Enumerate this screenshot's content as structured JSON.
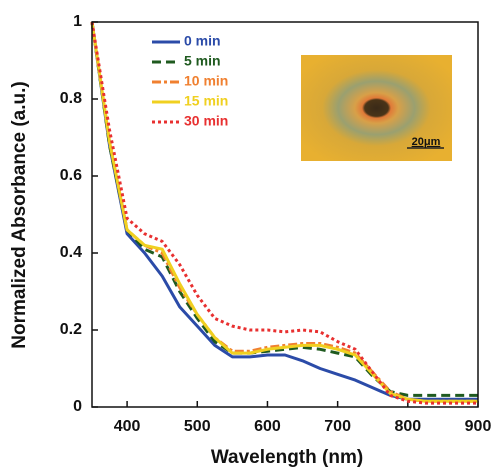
{
  "chart_data": {
    "type": "line",
    "xlabel": "Wavelength (nm)",
    "ylabel": "Normalized Absorbance (a.u.)",
    "x": [
      350,
      375,
      400,
      425,
      450,
      475,
      500,
      525,
      550,
      575,
      600,
      625,
      650,
      675,
      700,
      725,
      750,
      775,
      800,
      825,
      850,
      875,
      900
    ],
    "series": [
      {
        "name": "0 min",
        "color": "#2b4ba8",
        "dash": "solid",
        "values": [
          1.0,
          0.68,
          0.45,
          0.4,
          0.34,
          0.26,
          0.21,
          0.16,
          0.13,
          0.13,
          0.135,
          0.135,
          0.12,
          0.1,
          0.085,
          0.07,
          0.05,
          0.03,
          0.02,
          0.02,
          0.02,
          0.02,
          0.02
        ]
      },
      {
        "name": "5 min",
        "color": "#1f5a1f",
        "dash": "dashed",
        "values": [
          1.0,
          0.68,
          0.46,
          0.41,
          0.39,
          0.3,
          0.23,
          0.17,
          0.14,
          0.14,
          0.145,
          0.15,
          0.155,
          0.15,
          0.14,
          0.13,
          0.08,
          0.04,
          0.03,
          0.03,
          0.03,
          0.03,
          0.03
        ]
      },
      {
        "name": "10 min",
        "color": "#f08030",
        "dash": "dashdot",
        "values": [
          1.0,
          0.69,
          0.46,
          0.42,
          0.4,
          0.31,
          0.24,
          0.18,
          0.145,
          0.145,
          0.155,
          0.16,
          0.165,
          0.165,
          0.155,
          0.14,
          0.09,
          0.04,
          0.02,
          0.015,
          0.015,
          0.015,
          0.015
        ]
      },
      {
        "name": "15 min",
        "color": "#f0d020",
        "dash": "solid",
        "values": [
          1.0,
          0.69,
          0.46,
          0.42,
          0.41,
          0.32,
          0.24,
          0.18,
          0.14,
          0.14,
          0.15,
          0.155,
          0.16,
          0.16,
          0.15,
          0.135,
          0.085,
          0.035,
          0.02,
          0.015,
          0.015,
          0.015,
          0.015
        ]
      },
      {
        "name": "30 min",
        "color": "#e83030",
        "dash": "dotted",
        "values": [
          1.0,
          0.72,
          0.49,
          0.45,
          0.43,
          0.37,
          0.29,
          0.23,
          0.21,
          0.2,
          0.2,
          0.195,
          0.2,
          0.195,
          0.17,
          0.15,
          0.09,
          0.03,
          0.015,
          0.01,
          0.01,
          0.01,
          0.01
        ]
      }
    ],
    "xlim": [
      350,
      900
    ],
    "xticks": [
      400,
      500,
      600,
      700,
      800,
      900
    ],
    "ylim": [
      0,
      1
    ],
    "yticks": [
      0,
      0.2,
      0.4,
      0.6,
      0.8,
      1
    ],
    "legend": "upper left",
    "annotations": [
      "20μm"
    ]
  }
}
